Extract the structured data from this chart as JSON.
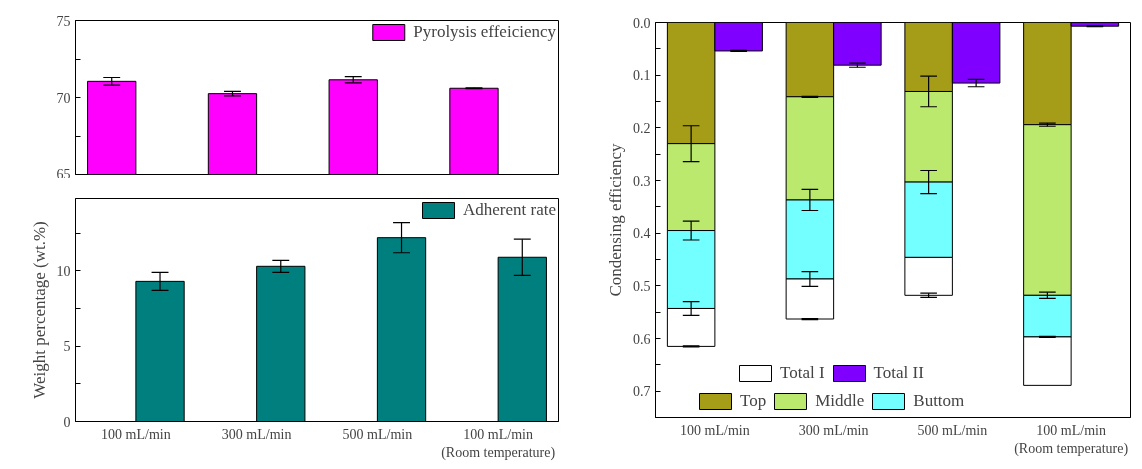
{
  "chart_data": [
    {
      "type": "bar",
      "categories": [
        null,
        null,
        null,
        null
      ],
      "ylim": [
        65,
        75
      ],
      "yticks": [
        65,
        {
          "value": 67.5,
          "label": null
        },
        70,
        {
          "value": 72.5,
          "label": null
        },
        75
      ],
      "grid": false,
      "legend": "top right",
      "series": [
        {
          "name": "Pyrolysis effeiciency",
          "color": "#ff00ff",
          "values": [
            71.05,
            70.25,
            71.15,
            70.6
          ],
          "errors": [
            0.25,
            0.15,
            0.2,
            0.03
          ]
        }
      ]
    },
    {
      "type": "bar",
      "categories": [
        "100 mL/min",
        "300 mL/min",
        "500 mL/min",
        "100 mL/min\n(Room temperature)"
      ],
      "ylim": [
        0,
        14.8
      ],
      "yticks": [
        0,
        {
          "value": 2.5,
          "label": null
        },
        5,
        {
          "value": 7.5,
          "label": null
        },
        10,
        {
          "value": 12.5,
          "label": null
        }
      ],
      "ylabel": "Weight percentage (wt.%)",
      "grid": false,
      "legend": "top right",
      "series": [
        {
          "name": "Adherent rate",
          "color": "#007f7f",
          "values": [
            9.3,
            10.3,
            12.2,
            10.9
          ],
          "errors": [
            0.6,
            0.4,
            1.0,
            1.2
          ]
        }
      ]
    },
    {
      "type": "bar",
      "categories": [
        "100 mL/min",
        "300 mL/min",
        "500 mL/min",
        "100 mL/min\n(Room temperature)"
      ],
      "ylim": [
        0.75,
        0
      ],
      "yticks": [
        {
          "value": 0,
          "label": "0.0"
        },
        {
          "value": 0.05,
          "label": null
        },
        0.1,
        {
          "value": 0.15,
          "label": null
        },
        0.2,
        {
          "value": 0.25,
          "label": null
        },
        0.3,
        {
          "value": 0.35,
          "label": null
        },
        0.4,
        {
          "value": 0.45,
          "label": null
        },
        0.5,
        {
          "value": 0.55,
          "label": null
        },
        0.6,
        {
          "value": 0.65,
          "label": null
        },
        0.7
      ],
      "ylabel": "Condensing efficiency",
      "grid": false,
      "legend": "bottom",
      "series": [
        {
          "name": "Top",
          "color": "#a59c17",
          "base": [
            0,
            0,
            0,
            0
          ],
          "values": [
            0.23,
            0.141,
            0.131,
            0.194
          ],
          "errors": [
            0.034,
            0.001,
            0.029,
            0.003
          ]
        },
        {
          "name": "Middle",
          "color": "#bbe96e",
          "base": [
            0.23,
            0.141,
            0.131,
            0.194
          ],
          "values": [
            0.165,
            0.196,
            0.172,
            0.324
          ],
          "errors": [
            0.018,
            0.02,
            0.022,
            0.006
          ]
        },
        {
          "name": "Buttom",
          "color": "#73ffff",
          "base": [
            0.395,
            0.337,
            0.303,
            0.518
          ],
          "values": [
            0.148,
            0.15,
            0.143,
            0.079
          ],
          "errors": [
            0.013,
            0.014,
            null,
            0.001
          ]
        },
        {
          "name": "Total I",
          "color": "#ffffff",
          "base": [
            0.543,
            0.487,
            0.446,
            0.597
          ],
          "values": [
            0.072,
            0.076,
            0.072,
            0.092
          ],
          "errors": [
            0.001,
            0.001,
            0.004,
            null
          ]
        },
        {
          "name": "Total II",
          "color": "#8000ff",
          "values": [
            0.054,
            0.081,
            0.115,
            0.007
          ],
          "errors": [
            0.001,
            0.004,
            0.007,
            0.001
          ]
        }
      ]
    }
  ]
}
